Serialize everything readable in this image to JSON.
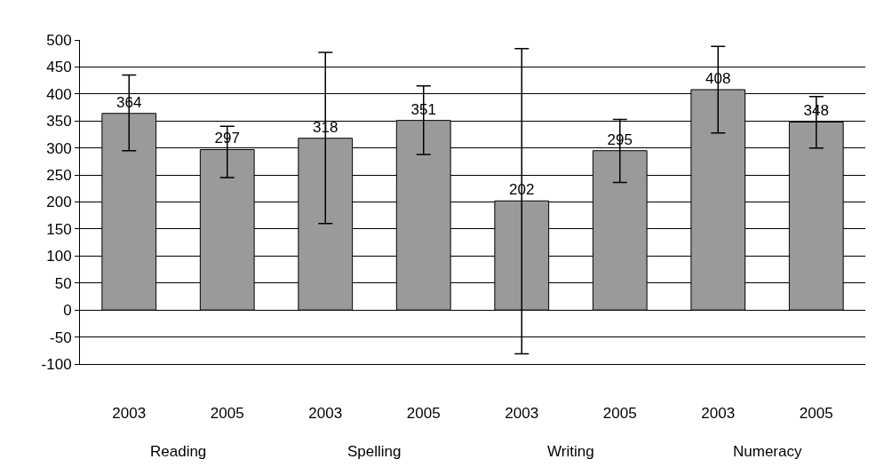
{
  "chart_data": {
    "type": "bar",
    "categories": [
      "2003",
      "2005",
      "2003",
      "2005",
      "2003",
      "2005",
      "2003",
      "2005"
    ],
    "values": [
      364,
      297,
      318,
      351,
      202,
      295,
      408,
      348
    ],
    "errors": [
      [
        295,
        435
      ],
      [
        245,
        340
      ],
      [
        160,
        477
      ],
      [
        288,
        415
      ],
      [
        -81,
        484
      ],
      [
        236,
        353
      ],
      [
        328,
        488
      ],
      [
        300,
        395
      ]
    ],
    "color": "#9a9a9a",
    "data_labels": true,
    "annotations": [
      "Reading",
      "Spelling",
      "Writing",
      "Numeracy"
    ],
    "ylim": [
      -100,
      500
    ],
    "yticks": [
      -100,
      -50,
      0,
      50,
      100,
      150,
      200,
      250,
      300,
      350,
      400,
      450,
      500
    ],
    "grid": "y"
  }
}
